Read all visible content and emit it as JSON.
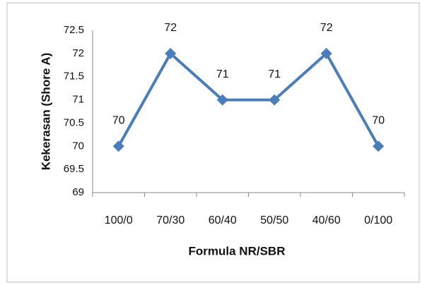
{
  "chart_data": {
    "type": "line",
    "x_label": "Formula NR/SBR",
    "y_label": "Kekerasan (Shore A)",
    "categories": [
      "100/0",
      "70/30",
      "60/40",
      "50/50",
      "40/60",
      "0/100"
    ],
    "values": [
      70,
      72,
      71,
      71,
      72,
      70
    ],
    "color": "#4a7ebb",
    "ylim": [
      69,
      72.5
    ],
    "yticks": [
      69,
      69.5,
      70,
      70.5,
      71,
      71.5,
      72,
      72.5
    ],
    "grid": false
  }
}
